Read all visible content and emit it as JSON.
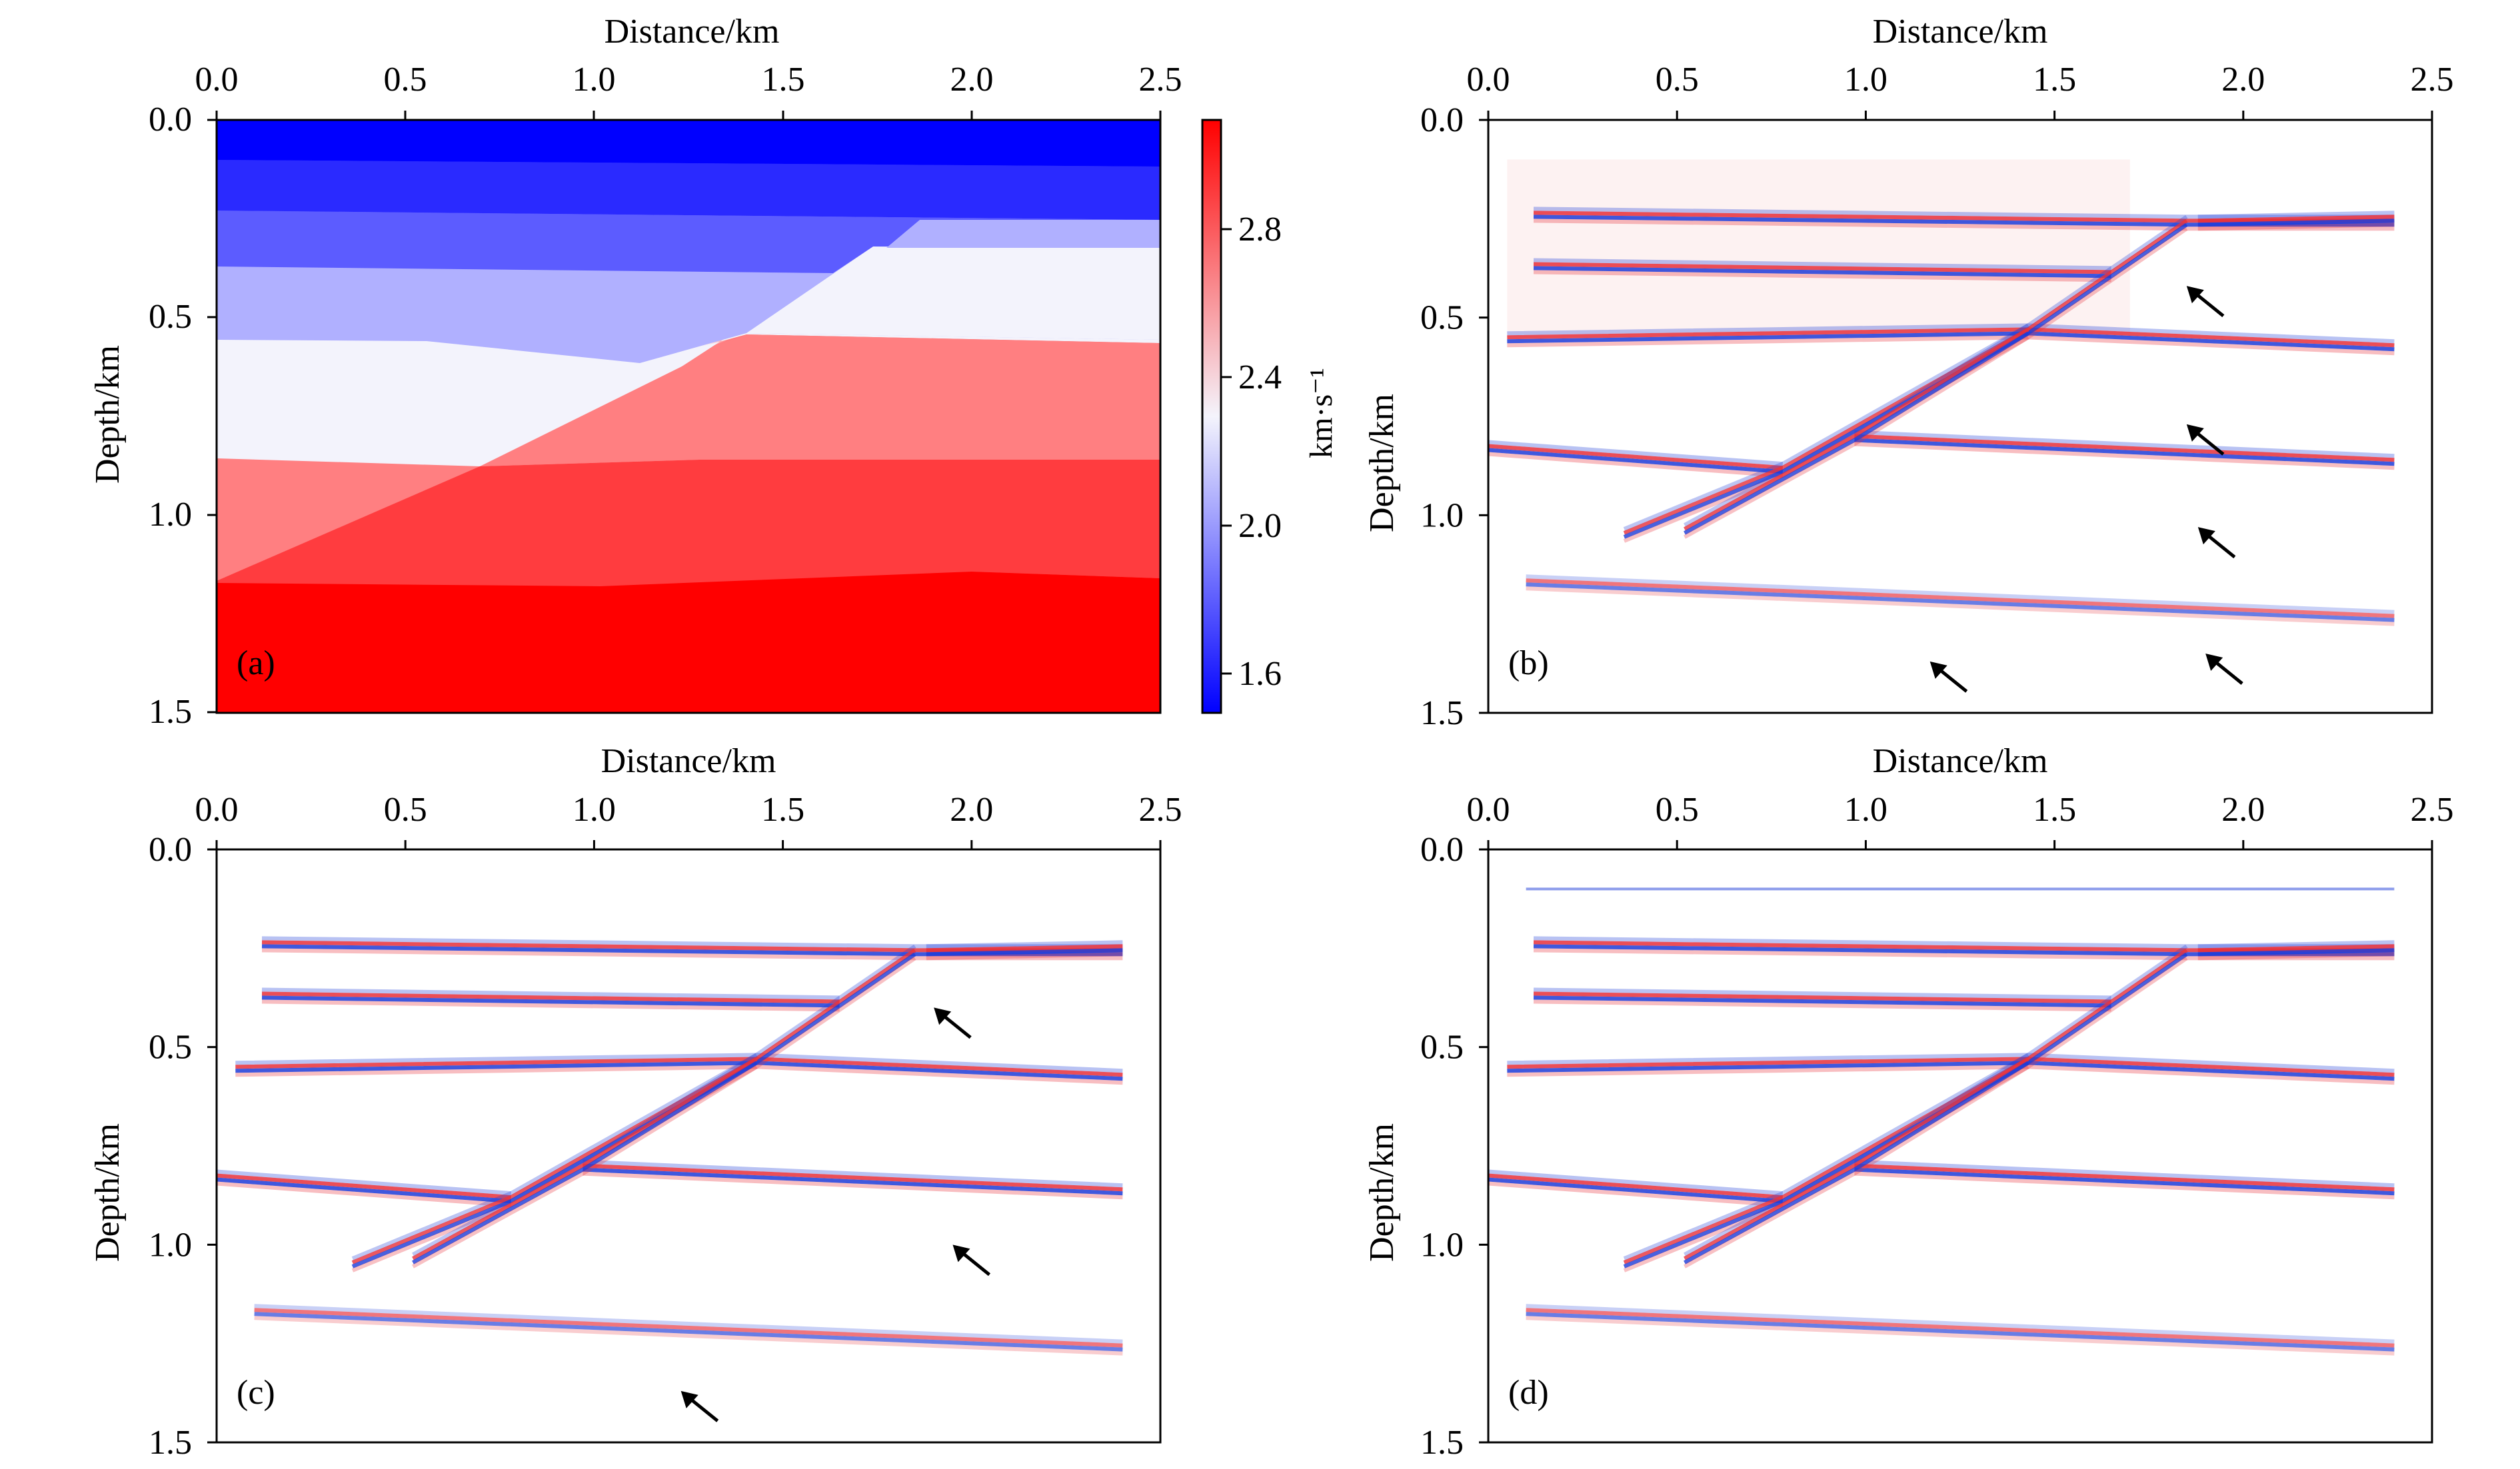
{
  "figure": {
    "panels": [
      {
        "id": "a",
        "label": "(a)",
        "kind": "velocity-model",
        "xlabel": "Distance/km",
        "ylabel": "Depth/km",
        "x_ticks": [
          "0.0",
          "0.5",
          "1.0",
          "1.5",
          "2.0",
          "2.5"
        ],
        "y_ticks": [
          "0.0",
          "0.5",
          "1.0",
          "1.5"
        ],
        "xlim": [
          0,
          2.5
        ],
        "ylim": [
          0,
          1.5
        ],
        "arrows": []
      },
      {
        "id": "b",
        "label": "(b)",
        "kind": "migration-image",
        "xlabel": "Distance/km",
        "ylabel": "Depth/km",
        "x_ticks": [
          "0.0",
          "0.5",
          "1.0",
          "1.5",
          "2.0",
          "2.5"
        ],
        "y_ticks": [
          "0.0",
          "0.5",
          "1.0",
          "1.5"
        ],
        "xlim": [
          0,
          2.5
        ],
        "ylim": [
          0,
          1.5
        ],
        "arrows": [
          {
            "x": 1.85,
            "y": 0.42
          },
          {
            "x": 1.85,
            "y": 0.77
          },
          {
            "x": 1.88,
            "y": 1.03
          },
          {
            "x": 1.9,
            "y": 1.35
          },
          {
            "x": 1.17,
            "y": 1.37
          }
        ]
      },
      {
        "id": "c",
        "label": "(c)",
        "kind": "migration-image",
        "xlabel": "Distance/km",
        "ylabel": "Depth/km",
        "x_ticks": [
          "0.0",
          "0.5",
          "1.0",
          "1.5",
          "2.0",
          "2.5"
        ],
        "y_ticks": [
          "0.0",
          "0.5",
          "1.0",
          "1.5"
        ],
        "xlim": [
          0,
          2.5
        ],
        "ylim": [
          0,
          1.5
        ],
        "arrows": [
          {
            "x": 1.9,
            "y": 0.4
          },
          {
            "x": 1.95,
            "y": 1.0
          },
          {
            "x": 1.23,
            "y": 1.37
          }
        ]
      },
      {
        "id": "d",
        "label": "(d)",
        "kind": "migration-image",
        "xlabel": "Distance/km",
        "ylabel": "Depth/km",
        "x_ticks": [
          "0.0",
          "0.5",
          "1.0",
          "1.5",
          "2.0",
          "2.5"
        ],
        "y_ticks": [
          "0.0",
          "0.5",
          "1.0",
          "1.5"
        ],
        "xlim": [
          0,
          2.5
        ],
        "ylim": [
          0,
          1.5
        ],
        "arrows": []
      }
    ],
    "colorbar": {
      "unit": "km·s⁻¹",
      "ticks": [
        {
          "label": "2.8",
          "value": 2.8
        },
        {
          "label": "2.4",
          "value": 2.4
        },
        {
          "label": "2.0",
          "value": 2.0
        },
        {
          "label": "1.6",
          "value": 1.6
        }
      ],
      "range": [
        1.5,
        3.1
      ],
      "color_low": "#0000ff",
      "color_mid": "#f4f4fc",
      "color_high": "#ff0000"
    },
    "colors": {
      "positive": "#e8303a",
      "negative": "#1e3cd8",
      "frame": "#000000"
    }
  }
}
